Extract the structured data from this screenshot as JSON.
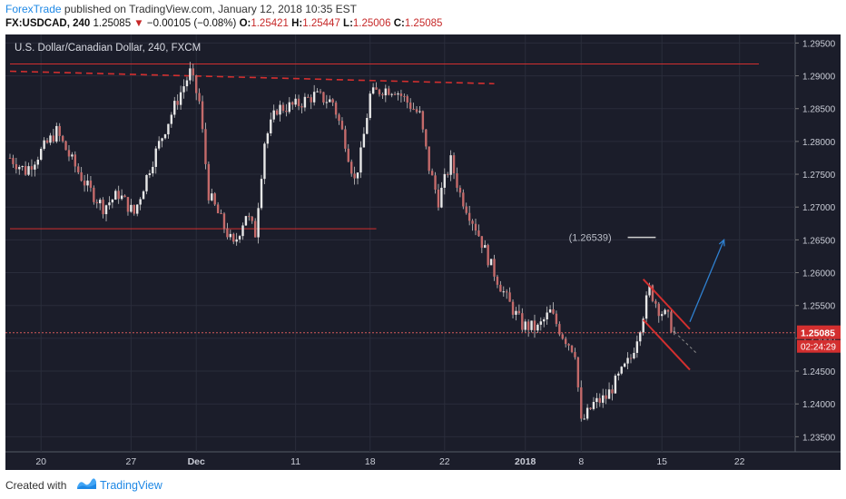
{
  "header": {
    "author": "ForexTrade",
    "published_text": "published on TradingView.com, January 12, 2018 10:35 EST",
    "symbol": "FX:USDCAD, 240",
    "price": "1.25085",
    "change": "−0.00105 (−0.08%)",
    "o_label": "O:",
    "o_value": "1.25421",
    "h_label": "H:",
    "h_value": "1.25447",
    "l_label": "L:",
    "l_value": "1.25006",
    "c_label": "C:",
    "c_value": "1.25085"
  },
  "colors": {
    "background": "#1b1d2a",
    "grid": "#2a2d3b",
    "candle": "#c8c8c8",
    "red_line": "#d32f2f",
    "blue_arrow": "#2f80d0",
    "price_tag": "#d32f2f"
  },
  "chart_data": {
    "type": "candlestick",
    "title": "U.S. Dollar/Canadian Dollar, 240, FXCM",
    "ylim": [
      1.2327,
      1.2963
    ],
    "y_ticks": [
      "1.29500",
      "1.29000",
      "1.28500",
      "1.28000",
      "1.27500",
      "1.27000",
      "1.26500",
      "1.26000",
      "1.25500",
      "1.25000",
      "1.24500",
      "1.24000",
      "1.23500"
    ],
    "y_tick_values": [
      1.295,
      1.29,
      1.285,
      1.28,
      1.275,
      1.27,
      1.265,
      1.26,
      1.255,
      1.25,
      1.245,
      1.24,
      1.235
    ],
    "x_ticks": [
      "20",
      "27",
      "Dec",
      "11",
      "18",
      "22",
      "2018",
      "8",
      "15",
      "22"
    ],
    "x_tick_index": [
      10,
      39,
      60,
      92,
      116,
      140,
      166,
      184,
      210,
      235
    ],
    "n_bars": 250,
    "last_price_label": "1.25085",
    "last_price": 1.25085,
    "countdown_label": "02:24:29",
    "target_label": "(1.26539)",
    "target_price": 1.26539,
    "close_series": [
      {
        "i": 0,
        "p": 1.2775
      },
      {
        "i": 5,
        "p": 1.2755
      },
      {
        "i": 10,
        "p": 1.2785
      },
      {
        "i": 15,
        "p": 1.2815
      },
      {
        "i": 20,
        "p": 1.277
      },
      {
        "i": 25,
        "p": 1.273
      },
      {
        "i": 30,
        "p": 1.27
      },
      {
        "i": 35,
        "p": 1.272
      },
      {
        "i": 40,
        "p": 1.269
      },
      {
        "i": 45,
        "p": 1.276
      },
      {
        "i": 50,
        "p": 1.282
      },
      {
        "i": 55,
        "p": 1.2875
      },
      {
        "i": 58,
        "p": 1.2905
      },
      {
        "i": 61,
        "p": 1.286
      },
      {
        "i": 64,
        "p": 1.272
      },
      {
        "i": 68,
        "p": 1.268
      },
      {
        "i": 72,
        "p": 1.264
      },
      {
        "i": 76,
        "p": 1.269
      },
      {
        "i": 79,
        "p": 1.266
      },
      {
        "i": 82,
        "p": 1.28
      },
      {
        "i": 86,
        "p": 1.285
      },
      {
        "i": 92,
        "p": 1.2855
      },
      {
        "i": 98,
        "p": 1.287
      },
      {
        "i": 104,
        "p": 1.286
      },
      {
        "i": 108,
        "p": 1.28
      },
      {
        "i": 111,
        "p": 1.274
      },
      {
        "i": 113,
        "p": 1.278
      },
      {
        "i": 116,
        "p": 1.287
      },
      {
        "i": 120,
        "p": 1.288
      },
      {
        "i": 124,
        "p": 1.288
      },
      {
        "i": 128,
        "p": 1.286
      },
      {
        "i": 132,
        "p": 1.284
      },
      {
        "i": 135,
        "p": 1.276
      },
      {
        "i": 138,
        "p": 1.271
      },
      {
        "i": 142,
        "p": 1.277
      },
      {
        "i": 145,
        "p": 1.272
      },
      {
        "i": 150,
        "p": 1.267
      },
      {
        "i": 155,
        "p": 1.261
      },
      {
        "i": 160,
        "p": 1.256
      },
      {
        "i": 165,
        "p": 1.252
      },
      {
        "i": 170,
        "p": 1.2515
      },
      {
        "i": 174,
        "p": 1.254
      },
      {
        "i": 178,
        "p": 1.2505
      },
      {
        "i": 182,
        "p": 1.248
      },
      {
        "i": 184,
        "p": 1.237
      },
      {
        "i": 188,
        "p": 1.24
      },
      {
        "i": 192,
        "p": 1.241
      },
      {
        "i": 196,
        "p": 1.244
      },
      {
        "i": 200,
        "p": 1.247
      },
      {
        "i": 203,
        "p": 1.252
      },
      {
        "i": 206,
        "p": 1.2575
      },
      {
        "i": 209,
        "p": 1.2545
      },
      {
        "i": 212,
        "p": 1.253
      },
      {
        "i": 214,
        "p": 1.25085
      }
    ],
    "red_levels": [
      {
        "name": "resistance-top",
        "price": 1.2918,
        "from": 0,
        "to": 250,
        "style": "solid"
      },
      {
        "name": "resistance-dashed",
        "from_i": 0,
        "from_p": 1.2907,
        "to_i": 156,
        "to_p": 1.2888,
        "style": "dashed"
      },
      {
        "name": "support-level",
        "price": 1.2667,
        "from": 0,
        "to": 118,
        "style": "solid"
      }
    ],
    "channel": {
      "upper": [
        [
          204,
          1.259
        ],
        [
          219,
          1.2514
        ]
      ],
      "lower": [
        [
          204,
          1.2528
        ],
        [
          219,
          1.2452
        ]
      ]
    },
    "projection_arrow": {
      "from": [
        219,
        1.2525
      ],
      "to": [
        230,
        1.265
      ]
    }
  },
  "footer": {
    "created_with": "Created with",
    "brand": "TradingView"
  }
}
